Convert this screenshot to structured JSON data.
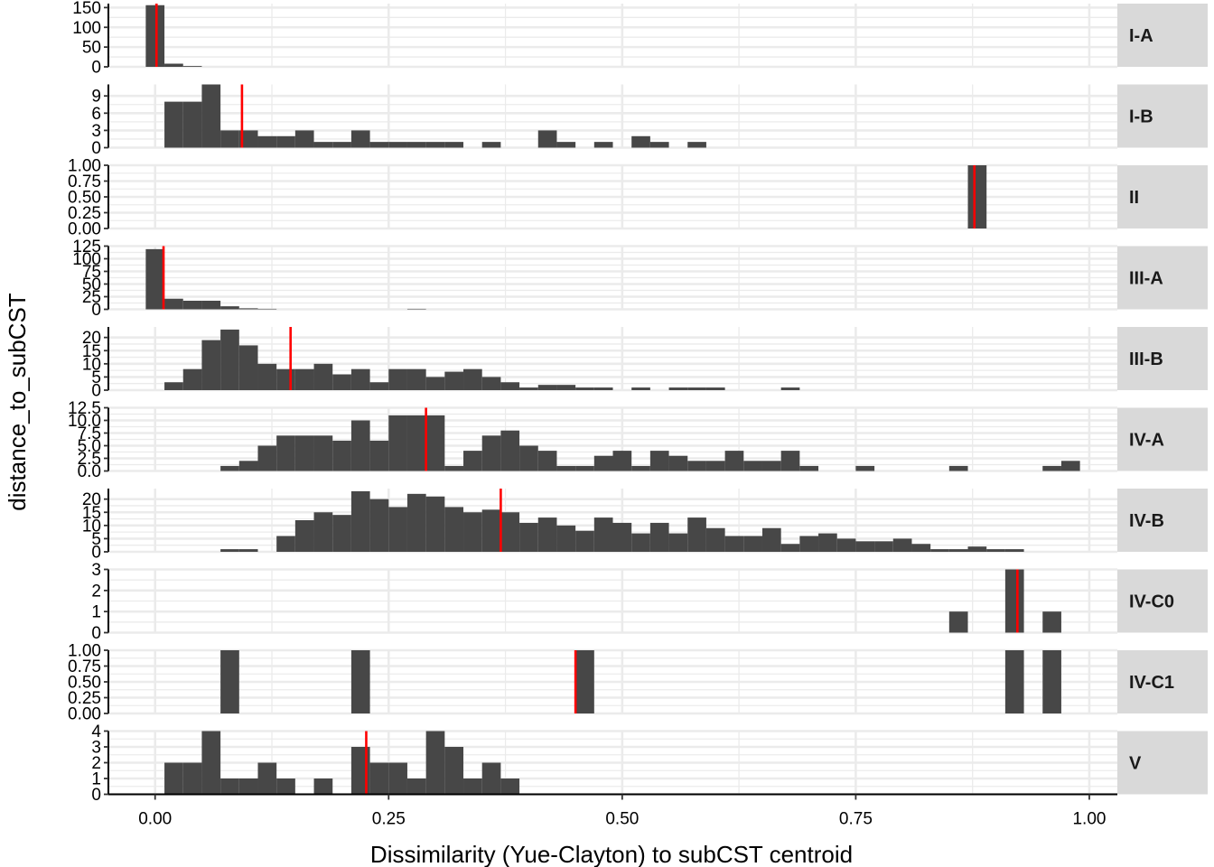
{
  "chart_data": {
    "type": "histogram",
    "xlabel": "Dissimilarity (Yue-Clayton) to subCST centroid",
    "ylabel": "distance_to_subCST",
    "xlim": [
      -0.05,
      1.03
    ],
    "x_ticks": [
      0,
      0.25,
      0.5,
      0.75,
      1
    ],
    "x_tick_labels": [
      "0.00",
      "0.25",
      "0.50",
      "0.75",
      "1.00"
    ],
    "bin_width": 0.02,
    "colors": {
      "bar": "#474747",
      "mean_line": "#ff0000",
      "panel_bg": "#ffffff",
      "grid": "#ebebeb",
      "strip_bg": "#d9d9d9"
    },
    "panels": [
      {
        "label": "I-A",
        "ylim": [
          0,
          160
        ],
        "y_ticks": [
          0,
          50,
          100,
          150
        ],
        "y_tick_labels": [
          "0",
          "50",
          "100",
          "150"
        ],
        "mean": 0.0015,
        "bins": [
          [
            -0.01,
            0.01,
            156
          ],
          [
            0.01,
            0.03,
            8
          ],
          [
            0.03,
            0.05,
            2
          ]
        ]
      },
      {
        "label": "I-B",
        "ylim": [
          0,
          11
        ],
        "y_ticks": [
          0,
          3,
          6,
          9
        ],
        "y_tick_labels": [
          "0",
          "3",
          "6",
          "9"
        ],
        "mean": 0.093,
        "bins": [
          [
            0.01,
            0.03,
            8
          ],
          [
            0.03,
            0.05,
            8
          ],
          [
            0.05,
            0.07,
            11
          ],
          [
            0.07,
            0.09,
            3
          ],
          [
            0.09,
            0.11,
            3
          ],
          [
            0.11,
            0.13,
            2
          ],
          [
            0.13,
            0.15,
            2
          ],
          [
            0.15,
            0.17,
            3
          ],
          [
            0.17,
            0.19,
            1
          ],
          [
            0.19,
            0.21,
            1
          ],
          [
            0.21,
            0.23,
            3
          ],
          [
            0.23,
            0.25,
            1
          ],
          [
            0.25,
            0.27,
            1
          ],
          [
            0.27,
            0.29,
            1
          ],
          [
            0.29,
            0.31,
            1
          ],
          [
            0.31,
            0.33,
            1
          ],
          [
            0.35,
            0.37,
            1
          ],
          [
            0.41,
            0.43,
            3
          ],
          [
            0.43,
            0.45,
            1
          ],
          [
            0.47,
            0.49,
            1
          ],
          [
            0.51,
            0.53,
            2
          ],
          [
            0.53,
            0.55,
            1
          ],
          [
            0.57,
            0.59,
            1
          ]
        ]
      },
      {
        "label": "II",
        "ylim": [
          0,
          1
        ],
        "y_ticks": [
          0,
          0.25,
          0.5,
          0.75,
          1
        ],
        "y_tick_labels": [
          "0.00",
          "0.25",
          "0.50",
          "0.75",
          "1.00"
        ],
        "mean": 0.877,
        "bins": [
          [
            0.87,
            0.89,
            1
          ]
        ]
      },
      {
        "label": "III-A",
        "ylim": [
          0,
          125
        ],
        "y_ticks": [
          0,
          25,
          50,
          75,
          100,
          125
        ],
        "y_tick_labels": [
          "0",
          "25",
          "50",
          "75",
          "100",
          "125"
        ],
        "mean": 0.009,
        "bins": [
          [
            -0.01,
            0.01,
            119
          ],
          [
            0.01,
            0.03,
            21
          ],
          [
            0.03,
            0.05,
            17
          ],
          [
            0.05,
            0.07,
            17
          ],
          [
            0.07,
            0.09,
            6
          ],
          [
            0.09,
            0.11,
            2
          ],
          [
            0.11,
            0.13,
            1
          ],
          [
            0.27,
            0.29,
            1
          ]
        ]
      },
      {
        "label": "III-B",
        "ylim": [
          0,
          24
        ],
        "y_ticks": [
          0,
          5,
          10,
          15,
          20
        ],
        "y_tick_labels": [
          "0",
          "5",
          "10",
          "15",
          "20"
        ],
        "mean": 0.145,
        "bins": [
          [
            0.01,
            0.03,
            3
          ],
          [
            0.03,
            0.05,
            8
          ],
          [
            0.05,
            0.07,
            19
          ],
          [
            0.07,
            0.09,
            23
          ],
          [
            0.09,
            0.11,
            17
          ],
          [
            0.11,
            0.13,
            10
          ],
          [
            0.13,
            0.15,
            8
          ],
          [
            0.15,
            0.17,
            8
          ],
          [
            0.17,
            0.19,
            10
          ],
          [
            0.19,
            0.21,
            6
          ],
          [
            0.21,
            0.23,
            8
          ],
          [
            0.23,
            0.25,
            3
          ],
          [
            0.25,
            0.27,
            8
          ],
          [
            0.27,
            0.29,
            8
          ],
          [
            0.29,
            0.31,
            5
          ],
          [
            0.31,
            0.33,
            7
          ],
          [
            0.33,
            0.35,
            8
          ],
          [
            0.35,
            0.37,
            5
          ],
          [
            0.37,
            0.39,
            3
          ],
          [
            0.39,
            0.41,
            1
          ],
          [
            0.41,
            0.43,
            2
          ],
          [
            0.43,
            0.45,
            2
          ],
          [
            0.45,
            0.47,
            1
          ],
          [
            0.47,
            0.49,
            1
          ],
          [
            0.51,
            0.53,
            1
          ],
          [
            0.55,
            0.57,
            1
          ],
          [
            0.57,
            0.59,
            1
          ],
          [
            0.59,
            0.61,
            1
          ],
          [
            0.67,
            0.69,
            1
          ]
        ]
      },
      {
        "label": "IV-A",
        "ylim": [
          0,
          12.5
        ],
        "y_ticks": [
          0,
          2.5,
          5,
          7.5,
          10,
          12.5
        ],
        "y_tick_labels": [
          "0.0",
          "2.5",
          "5.0",
          "7.5",
          "10.0",
          "12.5"
        ],
        "mean": 0.29,
        "bins": [
          [
            0.07,
            0.09,
            1
          ],
          [
            0.09,
            0.11,
            2
          ],
          [
            0.11,
            0.13,
            5
          ],
          [
            0.13,
            0.15,
            7
          ],
          [
            0.15,
            0.17,
            7
          ],
          [
            0.17,
            0.19,
            7
          ],
          [
            0.19,
            0.21,
            6
          ],
          [
            0.21,
            0.23,
            10
          ],
          [
            0.23,
            0.25,
            6
          ],
          [
            0.25,
            0.27,
            11
          ],
          [
            0.27,
            0.29,
            11
          ],
          [
            0.29,
            0.31,
            11
          ],
          [
            0.31,
            0.33,
            1
          ],
          [
            0.33,
            0.35,
            4
          ],
          [
            0.35,
            0.37,
            7
          ],
          [
            0.37,
            0.39,
            8
          ],
          [
            0.39,
            0.41,
            5
          ],
          [
            0.41,
            0.43,
            4
          ],
          [
            0.43,
            0.45,
            1
          ],
          [
            0.45,
            0.47,
            1
          ],
          [
            0.47,
            0.49,
            3
          ],
          [
            0.49,
            0.51,
            4
          ],
          [
            0.51,
            0.53,
            1
          ],
          [
            0.53,
            0.55,
            4
          ],
          [
            0.55,
            0.57,
            3
          ],
          [
            0.57,
            0.59,
            2
          ],
          [
            0.59,
            0.61,
            2
          ],
          [
            0.61,
            0.63,
            4
          ],
          [
            0.63,
            0.65,
            2
          ],
          [
            0.65,
            0.67,
            2
          ],
          [
            0.67,
            0.69,
            4
          ],
          [
            0.69,
            0.71,
            1
          ],
          [
            0.75,
            0.77,
            1
          ],
          [
            0.85,
            0.87,
            1
          ],
          [
            0.95,
            0.97,
            1
          ],
          [
            0.97,
            0.99,
            2
          ]
        ]
      },
      {
        "label": "IV-B",
        "ylim": [
          0,
          24
        ],
        "y_ticks": [
          0,
          5,
          10,
          15,
          20
        ],
        "y_tick_labels": [
          "0",
          "5",
          "10",
          "15",
          "20"
        ],
        "mean": 0.37,
        "bins": [
          [
            0.07,
            0.09,
            1
          ],
          [
            0.09,
            0.11,
            1
          ],
          [
            0.13,
            0.15,
            6
          ],
          [
            0.15,
            0.17,
            12
          ],
          [
            0.17,
            0.19,
            15
          ],
          [
            0.19,
            0.21,
            14
          ],
          [
            0.21,
            0.23,
            23
          ],
          [
            0.23,
            0.25,
            20
          ],
          [
            0.25,
            0.27,
            17
          ],
          [
            0.27,
            0.29,
            22
          ],
          [
            0.29,
            0.31,
            21
          ],
          [
            0.31,
            0.33,
            17
          ],
          [
            0.33,
            0.35,
            15
          ],
          [
            0.35,
            0.37,
            16
          ],
          [
            0.37,
            0.39,
            15
          ],
          [
            0.39,
            0.41,
            11
          ],
          [
            0.41,
            0.43,
            13
          ],
          [
            0.43,
            0.45,
            10
          ],
          [
            0.45,
            0.47,
            8
          ],
          [
            0.47,
            0.49,
            13
          ],
          [
            0.49,
            0.51,
            11
          ],
          [
            0.51,
            0.53,
            7
          ],
          [
            0.53,
            0.55,
            11
          ],
          [
            0.55,
            0.57,
            7
          ],
          [
            0.57,
            0.59,
            13
          ],
          [
            0.59,
            0.61,
            9
          ],
          [
            0.61,
            0.63,
            6
          ],
          [
            0.63,
            0.65,
            6
          ],
          [
            0.65,
            0.67,
            9
          ],
          [
            0.67,
            0.69,
            3
          ],
          [
            0.69,
            0.71,
            6
          ],
          [
            0.71,
            0.73,
            7
          ],
          [
            0.73,
            0.75,
            5
          ],
          [
            0.75,
            0.77,
            4
          ],
          [
            0.77,
            0.79,
            4
          ],
          [
            0.79,
            0.81,
            5
          ],
          [
            0.81,
            0.83,
            3
          ],
          [
            0.83,
            0.85,
            1
          ],
          [
            0.85,
            0.87,
            1
          ],
          [
            0.87,
            0.89,
            2
          ],
          [
            0.89,
            0.91,
            1
          ],
          [
            0.91,
            0.93,
            1
          ]
        ]
      },
      {
        "label": "IV-C0",
        "ylim": [
          0,
          3
        ],
        "y_ticks": [
          0,
          1,
          2,
          3
        ],
        "y_tick_labels": [
          "0",
          "1",
          "2",
          "3"
        ],
        "mean": 0.923,
        "bins": [
          [
            0.85,
            0.87,
            1
          ],
          [
            0.91,
            0.93,
            3
          ],
          [
            0.95,
            0.97,
            1
          ]
        ]
      },
      {
        "label": "IV-C1",
        "ylim": [
          0,
          1
        ],
        "y_ticks": [
          0,
          0.25,
          0.5,
          0.75,
          1
        ],
        "y_tick_labels": [
          "0.00",
          "0.25",
          "0.50",
          "0.75",
          "1.00"
        ],
        "mean": 0.45,
        "bins": [
          [
            0.07,
            0.09,
            1
          ],
          [
            0.21,
            0.23,
            1
          ],
          [
            0.45,
            0.47,
            1
          ],
          [
            0.91,
            0.93,
            1
          ],
          [
            0.95,
            0.97,
            1
          ]
        ]
      },
      {
        "label": "V",
        "ylim": [
          0,
          4
        ],
        "y_ticks": [
          0,
          1,
          2,
          3,
          4
        ],
        "y_tick_labels": [
          "0",
          "1",
          "2",
          "3",
          "4"
        ],
        "mean": 0.226,
        "bins": [
          [
            0.01,
            0.03,
            2
          ],
          [
            0.03,
            0.05,
            2
          ],
          [
            0.05,
            0.07,
            4
          ],
          [
            0.07,
            0.09,
            1
          ],
          [
            0.09,
            0.11,
            1
          ],
          [
            0.11,
            0.13,
            2
          ],
          [
            0.13,
            0.15,
            1
          ],
          [
            0.17,
            0.19,
            1
          ],
          [
            0.21,
            0.23,
            3
          ],
          [
            0.23,
            0.25,
            2
          ],
          [
            0.25,
            0.27,
            2
          ],
          [
            0.27,
            0.29,
            1
          ],
          [
            0.29,
            0.31,
            4
          ],
          [
            0.31,
            0.33,
            3
          ],
          [
            0.33,
            0.35,
            1
          ],
          [
            0.35,
            0.37,
            2
          ],
          [
            0.37,
            0.39,
            1
          ]
        ]
      }
    ]
  }
}
